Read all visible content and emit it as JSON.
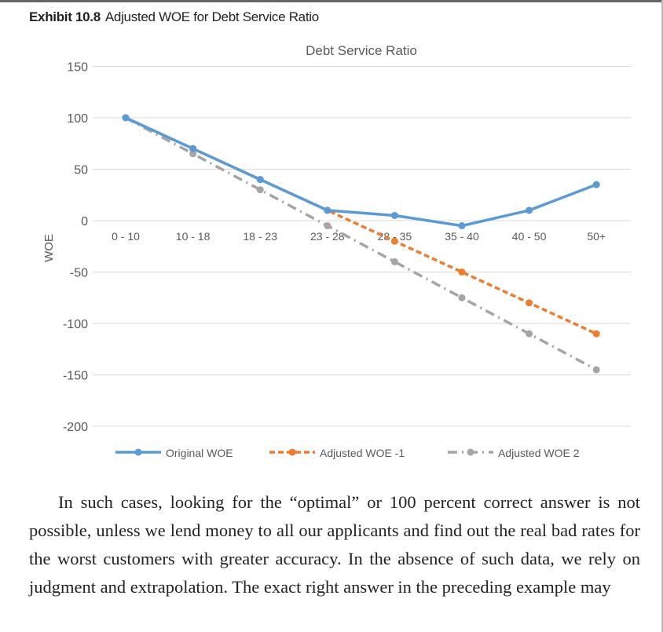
{
  "exhibit": {
    "label": "Exhibit 10.8",
    "caption": "Adjusted WOE for Debt Service Ratio"
  },
  "chart_data": {
    "type": "line",
    "title": "Debt Service Ratio",
    "xlabel": "",
    "ylabel": "WOE",
    "ylim": [
      -200,
      150
    ],
    "yticks": [
      150,
      100,
      50,
      0,
      -50,
      -100,
      -150,
      -200
    ],
    "grid": true,
    "legend": "bottom",
    "categories": [
      "0 - 10",
      "10 - 18",
      "18 - 23",
      "23 - 28",
      "28 - 35",
      "35 - 40",
      "40 - 50",
      "50+"
    ],
    "series": [
      {
        "name": "Original WOE",
        "values": [
          100,
          70,
          40,
          10,
          5,
          -5,
          10,
          35
        ],
        "color": "#5b9bd5",
        "style": "solid"
      },
      {
        "name": "Adjusted WOE -1",
        "values": [
          100,
          70,
          40,
          10,
          -20,
          -50,
          -80,
          -110
        ],
        "color": "#ed7d31",
        "style": "dashed"
      },
      {
        "name": "Adjusted WOE 2",
        "values": [
          100,
          65,
          30,
          -5,
          -40,
          -75,
          -110,
          -145
        ],
        "color": "#a5a5a5",
        "style": "dashdot"
      }
    ]
  },
  "body": {
    "paragraph": "In such cases, looking for the “optimal” or 100 percent correct answer is not possible, unless we lend money to all our applicants and find out the real bad rates for the worst customers with greater accuracy. In the absence of such data, we rely on judgment and extrapolation. The exact right answer in the preceding example may"
  }
}
